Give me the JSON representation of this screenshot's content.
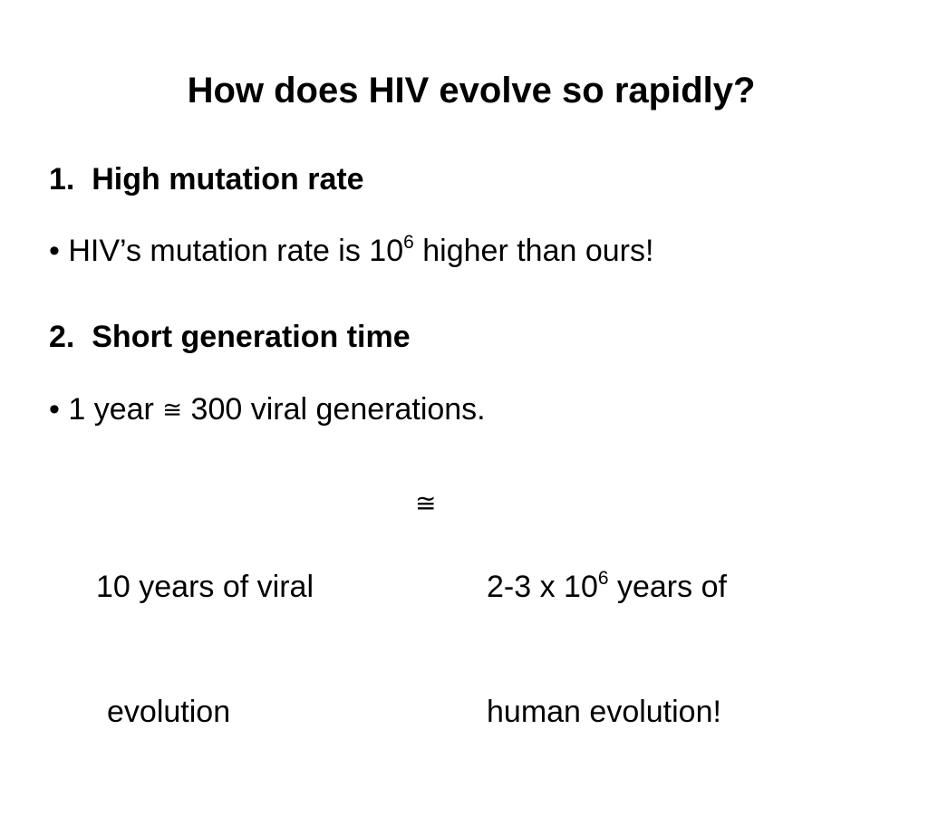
{
  "title": "How does HIV evolve so rapidly?",
  "points": [
    {
      "heading": "1.  High mutation rate",
      "bullet": {
        "prefix": "• HIV’s mutation rate is 10",
        "superscript": "6",
        "suffix": " higher than ours!"
      }
    },
    {
      "heading": "2.  Short generation time",
      "bullet": {
        "prefix": "• 1 year ",
        "symbol": "≅",
        "suffix": " 300 viral generations."
      }
    }
  ],
  "comparison": {
    "left_line1": "10 years of viral",
    "left_line2": "evolution",
    "symbol": "≅",
    "right_line1_prefix": "2-3 x 10",
    "right_line1_superscript": "6",
    "right_line1_suffix": " years of",
    "right_line2": "human evolution!"
  }
}
